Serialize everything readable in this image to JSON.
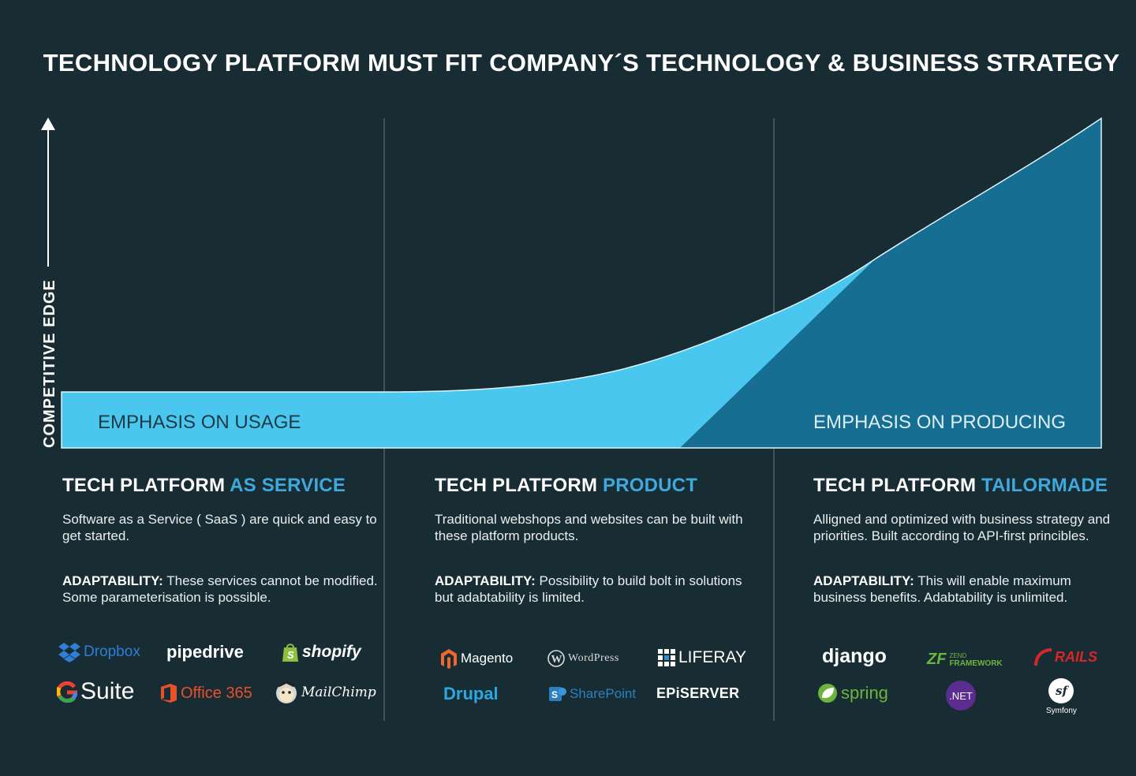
{
  "title": "TECHNOLOGY PLATFORM MUST FIT COMPANY´S TECHNOLOGY & BUSINESS STRATEGY",
  "axis": {
    "y_label": "COMPETITIVE EDGE"
  },
  "areas": {
    "usage_label": "EMPHASIS ON USAGE",
    "producing_label": "EMPHASIS ON PRODUCING"
  },
  "colors": {
    "background": "#182c33",
    "usage_area": "#4ac7ef",
    "producing_area": "#176e93",
    "accent_text": "#3fa9dd"
  },
  "columns": [
    {
      "title_prefix": "TECH PLATFORM ",
      "title_accent": "AS SERVICE",
      "description": "Software as a Service ( SaaS ) are quick and easy to get started.",
      "adaptability_label": "ADAPTABILITY:",
      "adaptability_text": " These services cannot be modified. Some parameterisation is possible.",
      "logos": [
        "Dropbox",
        "pipedrive",
        "shopify",
        "Suite",
        "Office 365",
        "MailChimp"
      ]
    },
    {
      "title_prefix": "TECH PLATFORM ",
      "title_accent": "PRODUCT",
      "description": "Traditional webshops and websites can be built with these platform products.",
      "adaptability_label": "ADAPTABILITY:",
      "adaptability_text": " Possibility to build bolt in solutions but adabtability is limited.",
      "logos": [
        "Magento",
        "WordPress",
        "LIFERAY",
        "Drupal",
        "SharePoint",
        "EPiSERVER"
      ]
    },
    {
      "title_prefix": "TECH PLATFORM ",
      "title_accent": "TAILORMADE",
      "description": "Alligned and optimized with business strategy and priorities. Built according to  API-first princibles.",
      "adaptability_label": "ADAPTABILITY:",
      "adaptability_text": " This will enable maximum business  benefits. Adabtability is unlimited.",
      "logos": [
        "django",
        "ZEND",
        "FRAMEWORK",
        "RAILS",
        "spring",
        ".NET",
        "Symfony"
      ]
    }
  ]
}
